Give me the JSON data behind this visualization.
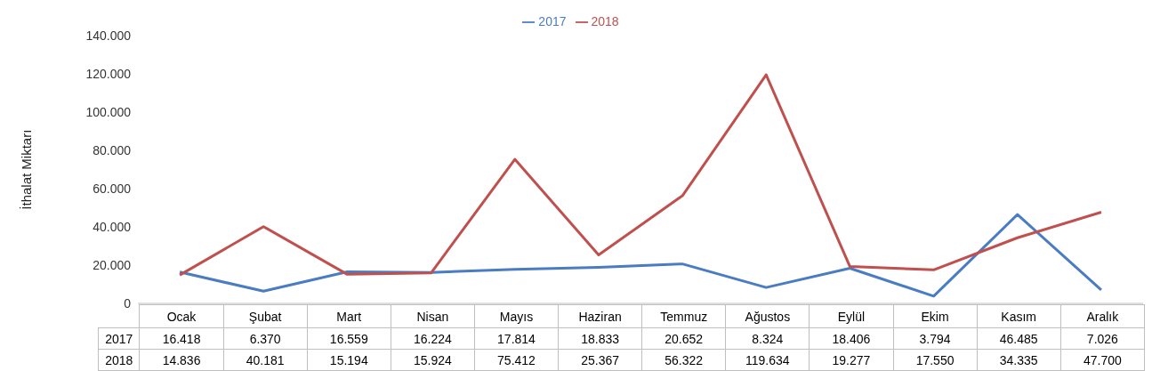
{
  "chart_data": {
    "type": "line",
    "ylabel": "İthalat Miktarı",
    "categories": [
      "Ocak",
      "Şubat",
      "Mart",
      "Nisan",
      "Mayıs",
      "Haziran",
      "Temmuz",
      "Ağustos",
      "Eylül",
      "Ekim",
      "Kasım",
      "Aralık"
    ],
    "series": [
      {
        "name": "2017",
        "color": "#4a7cc4",
        "values": [
          16418,
          6370,
          16559,
          16224,
          17814,
          18833,
          20652,
          8324,
          18406,
          3794,
          46485,
          7026
        ],
        "value_labels": [
          "16.418",
          "6.370",
          "16.559",
          "16.224",
          "17.814",
          "18.833",
          "20.652",
          "8.324",
          "18.406",
          "3.794",
          "46.485",
          "7.026"
        ]
      },
      {
        "name": "2018",
        "color": "#c0504d",
        "values": [
          14836,
          40181,
          15194,
          15924,
          75412,
          25367,
          56322,
          119634,
          19277,
          17550,
          34335,
          47700
        ],
        "value_labels": [
          "14.836",
          "40.181",
          "15.194",
          "15.924",
          "75.412",
          "25.367",
          "56.322",
          "119.634",
          "19.277",
          "17.550",
          "34.335",
          "47.700"
        ]
      }
    ],
    "ylim": [
      0,
      140000
    ],
    "yticks": [
      {
        "value": 0,
        "label": "0"
      },
      {
        "value": 20000,
        "label": "20.000"
      },
      {
        "value": 40000,
        "label": "40.000"
      },
      {
        "value": 60000,
        "label": "60.000"
      },
      {
        "value": 80000,
        "label": "80.000"
      },
      {
        "value": 100000,
        "label": "100.000"
      },
      {
        "value": 120000,
        "label": "120.000"
      },
      {
        "value": 140000,
        "label": "140.000"
      }
    ],
    "grid": false,
    "legend": "top",
    "marker": "none",
    "line_style": "solid"
  }
}
